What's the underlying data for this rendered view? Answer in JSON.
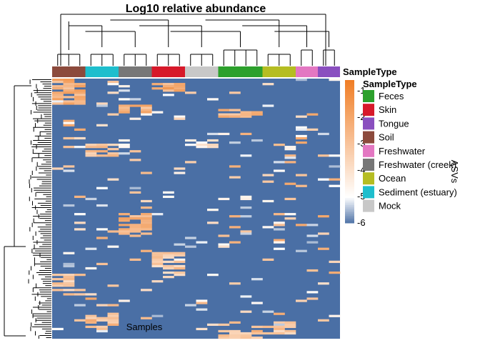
{
  "chart_data": {
    "type": "heatmap",
    "title": "Log10 relative abundance",
    "xlabel": "Samples",
    "ylabel": "ASVs",
    "annotation_label": "SampleType",
    "legend_title": "SampleType",
    "colorbar": {
      "ticks": [
        -1,
        -2,
        -3,
        -4,
        -5,
        -6
      ],
      "range": [
        -6,
        -0.6
      ],
      "low_color": "#4a6fa5",
      "mid_color": "#ffffff",
      "high_color": "#f07e26",
      "mid_value": -5
    },
    "groups": [
      {
        "name": "Soil",
        "color": "#8c4a3c",
        "samples": 3
      },
      {
        "name": "Sediment (estuary)",
        "color": "#1ebecd",
        "samples": 3
      },
      {
        "name": "Freshwater (creek)",
        "color": "#777777",
        "samples": 3
      },
      {
        "name": "Skin",
        "color": "#d7192a",
        "samples": 3
      },
      {
        "name": "Mock",
        "color": "#c8c8c8",
        "samples": 3
      },
      {
        "name": "Feces",
        "color": "#2ca02c",
        "samples": 4
      },
      {
        "name": "Ocean",
        "color": "#b5bd22",
        "samples": 3
      },
      {
        "name": "Freshwater",
        "color": "#e377c2",
        "samples": 2
      },
      {
        "name": "Tongue",
        "color": "#8a4fbf",
        "samples": 2
      }
    ],
    "legend_order": [
      "Feces",
      "Skin",
      "Tongue",
      "Soil",
      "Freshwater",
      "Freshwater (creek)",
      "Ocean",
      "Sediment (estuary)",
      "Mock"
    ],
    "n_rows": 120,
    "background_value": -6,
    "hot_blocks": [
      {
        "rows": [
          0,
          12
        ],
        "group": "Soil",
        "value": -1.6
      },
      {
        "rows": [
          30,
          36
        ],
        "group": "Sediment (estuary)",
        "value": -2.2
      },
      {
        "rows": [
          12,
          16
        ],
        "group": "Freshwater (creek)",
        "value": -1.8
      },
      {
        "rows": [
          2,
          6
        ],
        "group": "Skin",
        "value": -1.5
      },
      {
        "rows": [
          62,
          72
        ],
        "group": "Freshwater (creek)",
        "value": -1.6
      },
      {
        "rows": [
          80,
          92
        ],
        "group": "Skin",
        "value": -2.5
      },
      {
        "rows": [
          108,
          116
        ],
        "group": "Sediment (estuary)",
        "value": -2.0
      },
      {
        "rows": [
          112,
          118
        ],
        "group": "Ocean",
        "value": -2.4
      },
      {
        "rows": [
          90,
          100
        ],
        "group": "Soil",
        "value": -2.6
      },
      {
        "rows": [
          14,
          18
        ],
        "group": "Feces",
        "value": -2.0
      },
      {
        "rows": [
          28,
          32
        ],
        "group": "Mock",
        "value": -3.5
      },
      {
        "rows": [
          116,
          120
        ],
        "group": "Feces",
        "value": -2.2
      }
    ]
  }
}
